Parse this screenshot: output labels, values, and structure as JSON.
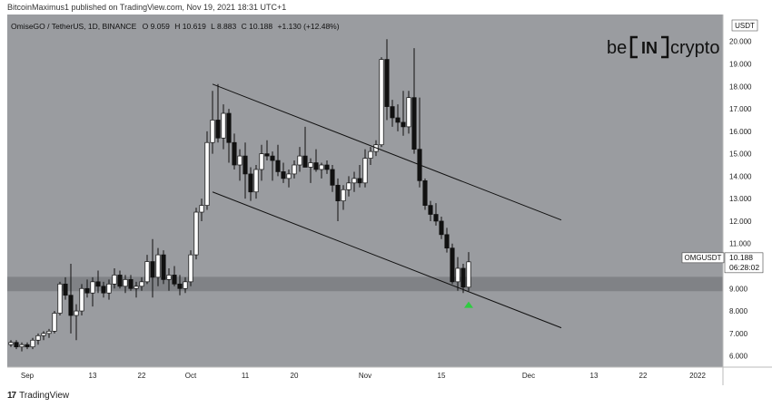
{
  "caption": "BitcoinMaximus1 published on TradingView.com, Nov 19, 2021 18:31 UTC+1",
  "symbol_line": "OmiseGO / TetherUS, 1D, BINANCE",
  "ohlc": {
    "o_label": "O",
    "o": "9.059",
    "h_label": "H",
    "h": "10.619",
    "l_label": "L",
    "l": "8.883",
    "c_label": "C",
    "c": "10.188",
    "change": "+1.130 (+12.48%)"
  },
  "brand": {
    "left": "be",
    "mid": "IN",
    "right": "crypto"
  },
  "price_tag": {
    "symbol": "OMGUSDT",
    "price": "10.188",
    "countdown": "06:28:02"
  },
  "currency": "USDT",
  "footer": {
    "logo": "17",
    "text": "TradingView"
  },
  "colors": {
    "plot_bg": "#9a9ca0",
    "up": "#ffffff",
    "down": "#111111",
    "zone": "#7d7f83",
    "arrow": "#2ecc40"
  },
  "chart_data": {
    "type": "candlestick",
    "ylim": [
      5.5,
      21.2
    ],
    "y_ticks": [
      "6.000",
      "7.000",
      "8.000",
      "9.000",
      "10.000",
      "11.000",
      "12.000",
      "13.000",
      "14.000",
      "15.000",
      "16.000",
      "17.000",
      "18.000",
      "19.000",
      "20.000"
    ],
    "x_ticks": [
      {
        "label": "Sep",
        "idx": 3
      },
      {
        "label": "13",
        "idx": 15
      },
      {
        "label": "22",
        "idx": 24
      },
      {
        "label": "Oct",
        "idx": 33
      },
      {
        "label": "11",
        "idx": 43
      },
      {
        "label": "20",
        "idx": 52
      },
      {
        "label": "Nov",
        "idx": 65
      },
      {
        "label": "15",
        "idx": 79
      },
      {
        "label": "Dec",
        "idx": 95
      },
      {
        "label": "13",
        "idx": 107
      },
      {
        "label": "22",
        "idx": 116
      },
      {
        "label": "2022",
        "idx": 126
      }
    ],
    "x_count": 131,
    "candles": [
      [
        6.5,
        6.7,
        6.4,
        6.6
      ],
      [
        6.6,
        6.7,
        6.3,
        6.4
      ],
      [
        6.4,
        6.6,
        6.2,
        6.5
      ],
      [
        6.5,
        6.6,
        6.3,
        6.4
      ],
      [
        6.4,
        6.8,
        6.3,
        6.7
      ],
      [
        6.7,
        7.0,
        6.5,
        6.9
      ],
      [
        6.9,
        7.1,
        6.7,
        7.0
      ],
      [
        7.0,
        7.2,
        6.8,
        7.1
      ],
      [
        7.1,
        8.0,
        7.0,
        7.9
      ],
      [
        7.9,
        9.3,
        7.8,
        9.2
      ],
      [
        9.2,
        9.5,
        8.5,
        8.7
      ],
      [
        8.7,
        10.1,
        7.0,
        7.8
      ],
      [
        7.8,
        8.3,
        6.7,
        8.0
      ],
      [
        8.0,
        9.2,
        7.8,
        9.0
      ],
      [
        9.0,
        9.4,
        8.6,
        8.8
      ],
      [
        8.8,
        9.5,
        8.2,
        9.3
      ],
      [
        9.3,
        9.8,
        8.8,
        9.1
      ],
      [
        9.1,
        9.3,
        8.6,
        8.8
      ],
      [
        8.8,
        9.4,
        8.5,
        9.2
      ],
      [
        9.2,
        9.9,
        9.0,
        9.6
      ],
      [
        9.6,
        9.8,
        9.0,
        9.1
      ],
      [
        9.1,
        9.6,
        8.8,
        9.4
      ],
      [
        9.4,
        9.6,
        8.9,
        9.0
      ],
      [
        9.0,
        9.3,
        8.6,
        9.1
      ],
      [
        9.1,
        9.5,
        8.9,
        9.3
      ],
      [
        9.3,
        10.5,
        9.2,
        10.2
      ],
      [
        10.2,
        11.2,
        8.6,
        9.5
      ],
      [
        9.5,
        10.8,
        9.1,
        10.5
      ],
      [
        10.5,
        10.7,
        9.2,
        9.4
      ],
      [
        9.4,
        9.9,
        8.9,
        9.6
      ],
      [
        9.6,
        10.0,
        9.1,
        9.2
      ],
      [
        9.2,
        9.6,
        8.7,
        9.0
      ],
      [
        9.0,
        9.5,
        8.8,
        9.3
      ],
      [
        9.3,
        10.7,
        9.1,
        10.5
      ],
      [
        10.5,
        12.6,
        10.3,
        12.4
      ],
      [
        12.4,
        13.0,
        12.0,
        12.7
      ],
      [
        12.7,
        16.0,
        12.5,
        15.5
      ],
      [
        15.5,
        17.8,
        15.0,
        16.5
      ],
      [
        16.5,
        18.1,
        15.5,
        15.7
      ],
      [
        15.7,
        17.2,
        15.2,
        16.8
      ],
      [
        16.8,
        17.0,
        14.6,
        15.5
      ],
      [
        15.5,
        15.9,
        14.3,
        14.5
      ],
      [
        14.5,
        15.2,
        13.8,
        14.9
      ],
      [
        14.9,
        15.5,
        13.0,
        14.1
      ],
      [
        14.1,
        14.4,
        12.9,
        13.3
      ],
      [
        13.3,
        14.5,
        13.0,
        14.3
      ],
      [
        14.3,
        15.4,
        13.8,
        15.0
      ],
      [
        15.0,
        15.6,
        14.7,
        14.9
      ],
      [
        14.9,
        15.1,
        13.8,
        14.7
      ],
      [
        14.7,
        15.4,
        14.0,
        14.2
      ],
      [
        14.2,
        14.6,
        13.7,
        13.9
      ],
      [
        13.9,
        14.3,
        13.5,
        14.1
      ],
      [
        14.1,
        14.7,
        13.9,
        14.5
      ],
      [
        14.5,
        15.3,
        14.2,
        14.9
      ],
      [
        14.9,
        16.2,
        14.4,
        14.4
      ],
      [
        14.4,
        14.8,
        13.7,
        14.6
      ],
      [
        14.6,
        15.2,
        14.2,
        14.3
      ],
      [
        14.3,
        14.6,
        13.9,
        14.5
      ],
      [
        14.5,
        14.7,
        14.1,
        14.3
      ],
      [
        14.3,
        14.5,
        13.3,
        13.6
      ],
      [
        13.6,
        13.9,
        12.0,
        12.9
      ],
      [
        12.9,
        13.6,
        12.5,
        13.4
      ],
      [
        13.4,
        14.0,
        13.1,
        13.7
      ],
      [
        13.7,
        14.2,
        13.3,
        13.9
      ],
      [
        13.9,
        14.5,
        13.5,
        13.7
      ],
      [
        13.7,
        15.2,
        13.5,
        14.8
      ],
      [
        14.8,
        15.3,
        14.5,
        15.1
      ],
      [
        15.1,
        15.6,
        14.9,
        15.4
      ],
      [
        15.4,
        19.3,
        15.3,
        19.2
      ],
      [
        19.2,
        20.1,
        16.5,
        17.1
      ],
      [
        17.1,
        17.4,
        16.2,
        16.6
      ],
      [
        16.6,
        17.2,
        16.0,
        16.4
      ],
      [
        16.4,
        17.8,
        15.8,
        16.2
      ],
      [
        16.2,
        17.8,
        15.9,
        17.5
      ],
      [
        17.5,
        19.7,
        15.0,
        15.2
      ],
      [
        15.2,
        17.5,
        13.5,
        13.8
      ],
      [
        13.8,
        13.9,
        12.5,
        12.7
      ],
      [
        12.7,
        12.9,
        12.0,
        12.3
      ],
      [
        12.3,
        12.8,
        11.8,
        12.0
      ],
      [
        12.0,
        12.2,
        11.2,
        11.4
      ],
      [
        11.4,
        11.7,
        10.6,
        10.8
      ],
      [
        10.8,
        11.0,
        9.2,
        9.3
      ],
      [
        9.3,
        10.4,
        8.9,
        9.9
      ],
      [
        9.9,
        10.1,
        8.8,
        9.06
      ],
      [
        9.059,
        10.619,
        8.883,
        10.188
      ]
    ],
    "trendlines": [
      {
        "name": "upper-channel",
        "from": {
          "idx": 37,
          "y": 18.1
        },
        "to": {
          "idx": 101,
          "y": 12.05
        }
      },
      {
        "name": "lower-channel",
        "from": {
          "idx": 37,
          "y": 13.3
        },
        "to": {
          "idx": 101,
          "y": 7.25
        }
      }
    ],
    "support_zone": {
      "y_from": 8.88,
      "y_to": 9.52
    },
    "signal_arrow": {
      "idx": 84,
      "y": 8.3
    }
  }
}
